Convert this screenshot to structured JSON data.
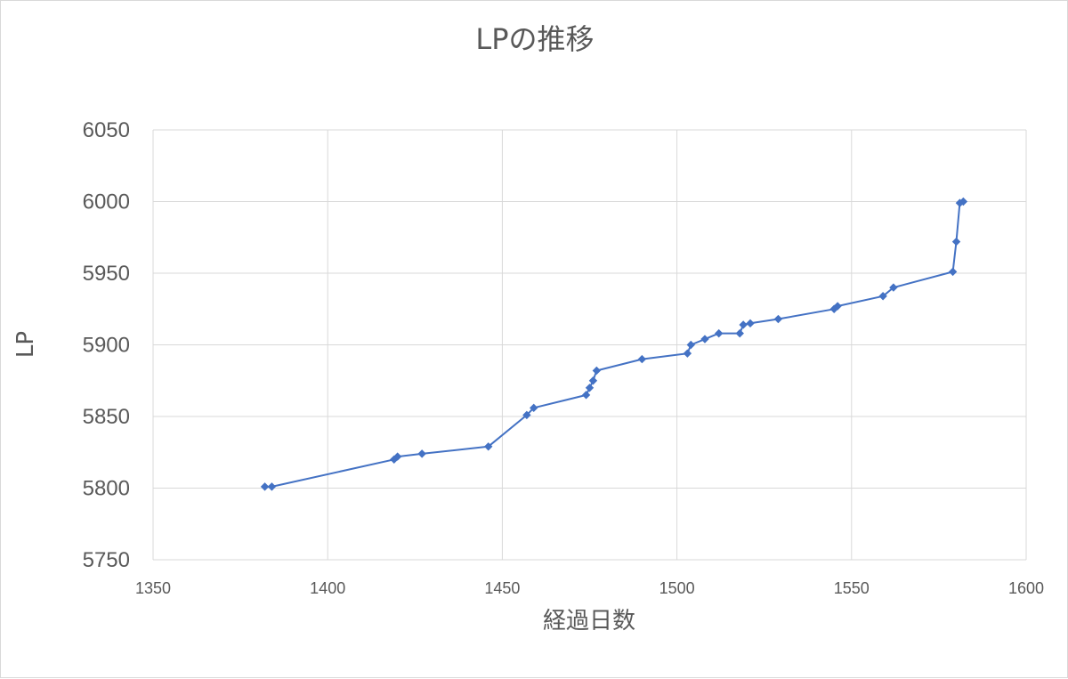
{
  "chart_data": {
    "type": "scatter",
    "mode": "lines+markers",
    "title": "LPの推移",
    "xlabel": "経過日数",
    "ylabel": "LP",
    "xlim": [
      1350,
      1600
    ],
    "ylim": [
      5750,
      6050
    ],
    "xticks": [
      1350,
      1400,
      1450,
      1500,
      1550,
      1600
    ],
    "yticks": [
      5750,
      5800,
      5850,
      5900,
      5950,
      6000,
      6050
    ],
    "xtick_labels": [
      "1350",
      "1400",
      "1450",
      "1500",
      "1550",
      "1600"
    ],
    "ytick_labels": [
      "5750",
      "5800",
      "5850",
      "5900",
      "5950",
      "6000",
      "6050"
    ],
    "grid": true,
    "legend": "none",
    "series": [
      {
        "color": "#4472c4",
        "marker": "diamond",
        "x": [
          1382,
          1384,
          1419,
          1420,
          1427,
          1446,
          1457,
          1459,
          1474,
          1475,
          1476,
          1477,
          1490,
          1503,
          1504,
          1508,
          1512,
          1518,
          1519,
          1521,
          1529,
          1545,
          1546,
          1559,
          1562,
          1579,
          1580,
          1581,
          1582
        ],
        "y": [
          5801,
          5801,
          5820,
          5822,
          5824,
          5829,
          5851,
          5856,
          5865,
          5870,
          5875,
          5882,
          5890,
          5894,
          5900,
          5904,
          5908,
          5908,
          5914,
          5915,
          5918,
          5925,
          5927,
          5934,
          5940,
          5951,
          5972,
          5999,
          6000
        ]
      }
    ]
  }
}
